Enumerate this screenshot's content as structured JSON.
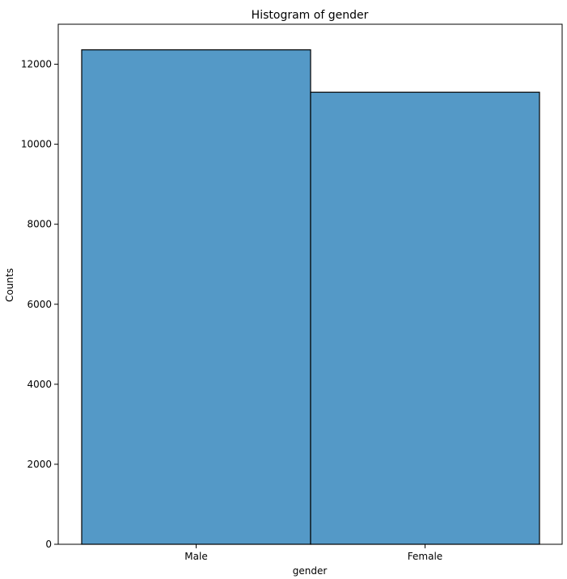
{
  "chart_data": {
    "type": "bar",
    "title": "Histogram of gender",
    "xlabel": "gender",
    "ylabel": "Counts",
    "categories": [
      "Male",
      "Female"
    ],
    "values": [
      12360,
      11300
    ],
    "ylim": [
      0,
      13000
    ],
    "yticks": [
      0,
      2000,
      4000,
      6000,
      8000,
      10000,
      12000
    ],
    "bar_color": "#5499c7",
    "edge_color": "#000000",
    "grid": false
  }
}
